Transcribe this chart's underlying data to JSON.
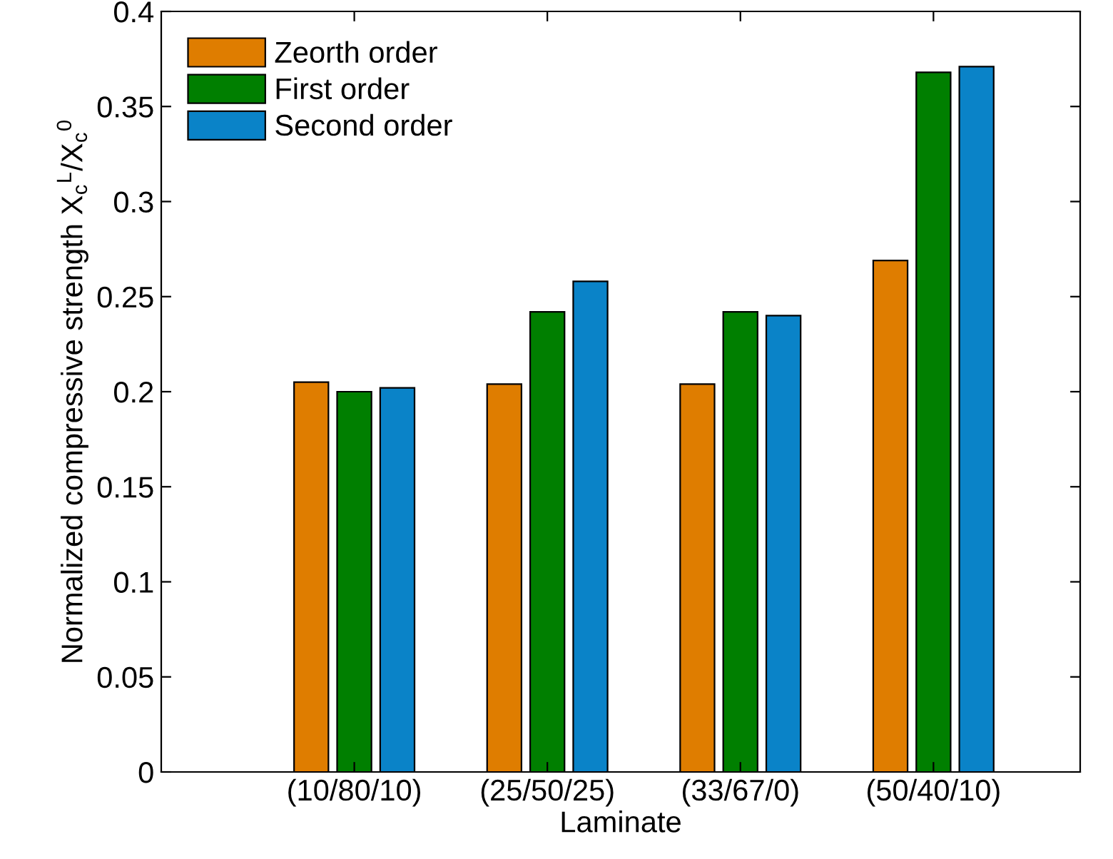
{
  "chart_data": {
    "type": "bar",
    "xlabel": "Laminate",
    "ylabel": "Normalized compressive strength X$_{c}$$^{L}$/X$_{c}$$^{0}$",
    "categories": [
      "(10/80/10)",
      "(25/50/25)",
      "(33/67/0)",
      "(50/40/10)"
    ],
    "series": [
      {
        "name": "Zeorth order",
        "color": "#df7d00",
        "values": [
          0.205,
          0.204,
          0.204,
          0.269
        ]
      },
      {
        "name": "First order",
        "color": "#007f00",
        "values": [
          0.2,
          0.242,
          0.242,
          0.368
        ]
      },
      {
        "name": "Second order",
        "color": "#0a83c8",
        "values": [
          0.202,
          0.258,
          0.24,
          0.371
        ]
      }
    ],
    "ylim": [
      0,
      0.4
    ],
    "yticks": [
      0,
      0.05,
      0.1,
      0.15,
      0.2,
      0.25,
      0.3,
      0.35,
      0.4
    ],
    "grid": false,
    "legend": "top left"
  }
}
